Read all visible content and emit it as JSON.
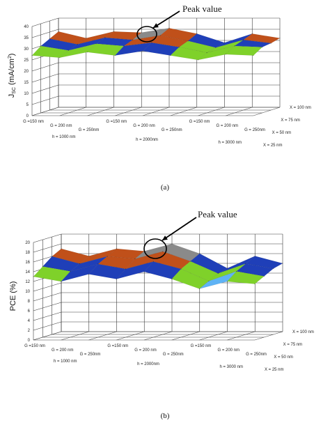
{
  "colors": {
    "band1": "#5fb3f5",
    "band2": "#7fd12a",
    "band3": "#1f3fb8",
    "band4": "#c0501a",
    "band5": "#8a8a8a",
    "base": "#e8a020",
    "grid": "#3a3a3a"
  },
  "chart_data": [
    {
      "type": "surface",
      "panel_label": "(a)",
      "ylabel_main": "J",
      "ylabel_sub": "SC",
      "ylabel_unit": " (mA/cm",
      "ylabel_sup": "2",
      "ylabel_close": ")",
      "annotation": "Peak value",
      "zlim": [
        0,
        40
      ],
      "ticks": [
        "0",
        "5",
        "10",
        "15",
        "20",
        "25",
        "30",
        "35",
        "40"
      ],
      "band_edges": [
        0,
        10,
        20,
        30,
        35,
        40
      ],
      "categories": [
        "G =150 nm",
        "G = 200 nm",
        "G = 250nm",
        "G =150 nm",
        "G = 200 nm",
        "G = 250nm",
        "G =150 nm",
        "G = 200 nm",
        "G = 250nm"
      ],
      "group_labels": [
        "h = 1000 nm",
        "h = 2000nm",
        "h = 3000 nm"
      ],
      "depth_labels": [
        "X = 25 nm",
        "X = 50 nm",
        "X = 75 nm",
        "X = 100 nm"
      ],
      "series": [
        {
          "name": "X = 25 nm",
          "values": [
            27,
            26,
            28.5,
            27,
            29,
            27,
            25,
            27.5,
            27
          ]
        },
        {
          "name": "X = 50 nm",
          "values": [
            30,
            28,
            31,
            30,
            31.5,
            29.5,
            27,
            30,
            29.5
          ]
        },
        {
          "name": "X = 75 nm",
          "values": [
            32,
            29.5,
            32.5,
            31.5,
            33.5,
            31,
            28,
            31.5,
            30
          ]
        },
        {
          "name": "X = 100 nm",
          "values": [
            34,
            31,
            34,
            33.5,
            35.5,
            33,
            29,
            33,
            31
          ]
        }
      ]
    },
    {
      "type": "surface",
      "panel_label": "(b)",
      "ylabel_main": "PCE (%)",
      "annotation": "Peak value",
      "zlim": [
        0,
        20
      ],
      "ticks": [
        "0",
        "2",
        "4",
        "6",
        "8",
        "10",
        "12",
        "14",
        "16",
        "18",
        "20"
      ],
      "band_edges": [
        0,
        10,
        12,
        14,
        16,
        18,
        20
      ],
      "categories": [
        "G =150 nm",
        "G = 200 nm",
        "G = 250nm",
        "G =150 nm",
        "G = 200 nm",
        "G = 250nm",
        "G =150 nm",
        "G = 200 nm",
        "G = 250nm"
      ],
      "group_labels": [
        "h = 1000 nm",
        "h = 2000nm",
        "h = 3000 nm"
      ],
      "depth_labels": [
        "X = 25 nm",
        "X = 50 nm",
        "X = 75 nm",
        "X = 100 nm"
      ],
      "series": [
        {
          "name": "X = 25 nm",
          "values": [
            13,
            12,
            13.5,
            12.5,
            14,
            12.5,
            10.5,
            12,
            11.5
          ]
        },
        {
          "name": "X = 50 nm",
          "values": [
            14.5,
            13.5,
            15,
            14,
            15.5,
            14,
            11.5,
            13.5,
            12.5
          ]
        },
        {
          "name": "X = 75 nm",
          "values": [
            16,
            14.5,
            16,
            15.5,
            17,
            15,
            12.5,
            14.5,
            13.5
          ]
        },
        {
          "name": "X = 100 nm",
          "values": [
            17,
            15.5,
            17,
            16.5,
            18,
            16,
            13,
            15.5,
            14
          ]
        }
      ]
    }
  ]
}
